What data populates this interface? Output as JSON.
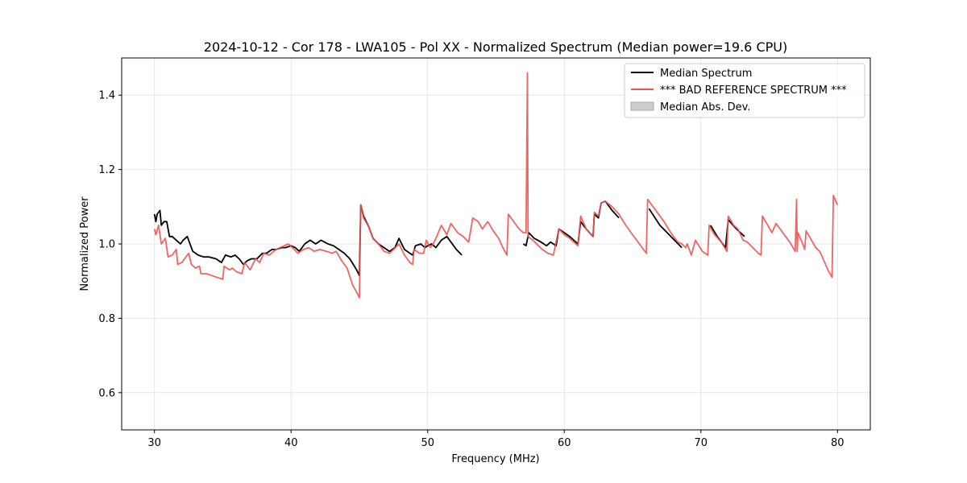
{
  "chart_data": {
    "type": "line",
    "title": "2024-10-12 - Cor 178 - LWA105 - Pol XX - Normalized Spectrum (Median power=19.6 CPU)",
    "xlabel": "Frequency (MHz)",
    "ylabel": "Normalized Power",
    "xlim": [
      27.6,
      82.4
    ],
    "ylim": [
      0.5,
      1.5
    ],
    "xticks": [
      30,
      40,
      50,
      60,
      70,
      80
    ],
    "yticks": [
      0.6,
      0.8,
      1.0,
      1.2,
      1.4
    ],
    "xtick_labels": [
      "30",
      "40",
      "50",
      "60",
      "70",
      "80"
    ],
    "ytick_labels": [
      "0.6",
      "0.8",
      "1.0",
      "1.2",
      "1.4"
    ],
    "grid": true,
    "legend_position": "top-right",
    "series": [
      {
        "name": "Median Spectrum",
        "color": "#000000",
        "segments": [
          [
            [
              30.0,
              1.08
            ],
            [
              30.1,
              1.06
            ],
            [
              30.2,
              1.08
            ],
            [
              30.4,
              1.09
            ],
            [
              30.5,
              1.05
            ],
            [
              30.7,
              1.06
            ],
            [
              30.9,
              1.06
            ],
            [
              31.0,
              1.04
            ],
            [
              31.1,
              1.02
            ],
            [
              31.3,
              1.02
            ],
            [
              31.6,
              1.01
            ],
            [
              31.9,
              1.0
            ],
            [
              32.1,
              1.01
            ],
            [
              32.4,
              1.02
            ],
            [
              32.6,
              1.0
            ],
            [
              32.8,
              0.98
            ],
            [
              33.2,
              0.97
            ],
            [
              33.6,
              0.965
            ],
            [
              34.0,
              0.965
            ],
            [
              34.5,
              0.96
            ],
            [
              34.9,
              0.95
            ],
            [
              35.2,
              0.97
            ],
            [
              35.6,
              0.965
            ],
            [
              35.9,
              0.97
            ],
            [
              36.2,
              0.96
            ],
            [
              36.5,
              0.945
            ],
            [
              36.8,
              0.955
            ],
            [
              37.1,
              0.96
            ],
            [
              37.5,
              0.96
            ],
            [
              37.9,
              0.975
            ],
            [
              38.2,
              0.975
            ],
            [
              38.6,
              0.985
            ],
            [
              38.9,
              0.985
            ],
            [
              39.3,
              0.99
            ],
            [
              39.6,
              0.99
            ],
            [
              40.0,
              0.995
            ],
            [
              40.3,
              0.99
            ],
            [
              40.6,
              0.98
            ],
            [
              41.0,
              1.0
            ],
            [
              41.4,
              1.01
            ],
            [
              41.8,
              1.0
            ],
            [
              42.2,
              1.01
            ],
            [
              42.7,
              1.0
            ],
            [
              43.1,
              0.995
            ],
            [
              43.5,
              0.985
            ],
            [
              43.9,
              0.975
            ],
            [
              44.3,
              0.96
            ],
            [
              44.8,
              0.93
            ],
            [
              45.0,
              0.915
            ],
            [
              45.1,
              1.105
            ],
            [
              45.3,
              1.075
            ],
            [
              45.7,
              1.045
            ],
            [
              46.0,
              1.015
            ],
            [
              46.4,
              1.0
            ],
            [
              46.8,
              0.99
            ],
            [
              47.2,
              0.98
            ],
            [
              47.6,
              0.99
            ],
            [
              47.9,
              1.015
            ],
            [
              48.3,
              0.985
            ],
            [
              48.7,
              0.975
            ],
            [
              48.9,
              0.97
            ],
            [
              49.1,
              0.995
            ],
            [
              49.5,
              1.0
            ],
            [
              49.8,
              0.99
            ],
            [
              50.0,
              0.995
            ],
            [
              50.3,
              1.0
            ],
            [
              50.6,
              0.99
            ],
            [
              51.0,
              1.01
            ],
            [
              51.4,
              1.02
            ],
            [
              51.8,
              1.0
            ],
            [
              52.1,
              0.985
            ],
            [
              52.5,
              0.97
            ]
          ],
          [
            [
              57.0,
              1.0
            ],
            [
              57.2,
              0.995
            ],
            [
              57.4,
              1.03
            ],
            [
              57.8,
              1.015
            ],
            [
              58.3,
              1.005
            ],
            [
              58.7,
              0.995
            ],
            [
              59.0,
              1.005
            ],
            [
              59.4,
              0.995
            ],
            [
              59.6,
              1.04
            ],
            [
              60.0,
              1.03
            ],
            [
              60.4,
              1.02
            ],
            [
              60.7,
              1.01
            ],
            [
              61.0,
              1.0
            ],
            [
              61.2,
              1.06
            ],
            [
              61.6,
              1.04
            ],
            [
              62.1,
              1.02
            ],
            [
              62.2,
              1.08
            ],
            [
              62.5,
              1.07
            ],
            [
              62.7,
              1.11
            ],
            [
              63.0,
              1.115
            ],
            [
              63.5,
              1.09
            ],
            [
              64.0,
              1.07
            ]
          ],
          [
            [
              66.2,
              1.095
            ],
            [
              67.0,
              1.05
            ],
            [
              67.8,
              1.02
            ],
            [
              68.6,
              0.99
            ]
          ],
          [
            [
              70.7,
              1.05
            ],
            [
              71.2,
              1.02
            ],
            [
              71.8,
              0.99
            ],
            [
              72.0,
              1.065
            ],
            [
              72.6,
              1.04
            ],
            [
              73.2,
              1.02
            ]
          ]
        ]
      },
      {
        "name": "*** BAD REFERENCE SPECTRUM ***",
        "color": "#ef5350",
        "segments": [
          [
            [
              30.0,
              1.04
            ],
            [
              30.1,
              1.025
            ],
            [
              30.3,
              1.05
            ],
            [
              30.5,
              1.0
            ],
            [
              30.8,
              1.015
            ],
            [
              31.0,
              0.965
            ],
            [
              31.3,
              0.97
            ],
            [
              31.6,
              0.985
            ],
            [
              31.7,
              0.945
            ],
            [
              32.0,
              0.95
            ],
            [
              32.5,
              0.975
            ],
            [
              32.7,
              0.945
            ],
            [
              33.0,
              0.935
            ],
            [
              33.3,
              0.94
            ],
            [
              33.4,
              0.92
            ],
            [
              33.8,
              0.92
            ],
            [
              34.2,
              0.915
            ],
            [
              34.6,
              0.91
            ],
            [
              35.0,
              0.905
            ],
            [
              35.1,
              0.94
            ],
            [
              35.5,
              0.93
            ],
            [
              35.7,
              0.935
            ],
            [
              36.0,
              0.925
            ],
            [
              36.4,
              0.92
            ],
            [
              36.6,
              0.95
            ],
            [
              37.0,
              0.93
            ],
            [
              37.4,
              0.96
            ],
            [
              37.7,
              0.95
            ],
            [
              38.0,
              0.975
            ],
            [
              38.4,
              0.97
            ],
            [
              38.9,
              0.985
            ],
            [
              39.2,
              0.99
            ],
            [
              39.5,
              0.995
            ],
            [
              39.8,
              1.0
            ],
            [
              40.1,
              0.99
            ],
            [
              40.5,
              0.975
            ],
            [
              40.9,
              0.985
            ],
            [
              41.3,
              0.99
            ],
            [
              41.7,
              0.98
            ],
            [
              42.1,
              0.985
            ],
            [
              42.6,
              0.98
            ],
            [
              43.0,
              0.975
            ],
            [
              43.3,
              0.98
            ],
            [
              43.7,
              0.955
            ],
            [
              44.1,
              0.935
            ],
            [
              44.5,
              0.89
            ],
            [
              44.8,
              0.87
            ],
            [
              45.0,
              0.855
            ],
            [
              45.1,
              1.105
            ],
            [
              45.3,
              1.07
            ],
            [
              45.7,
              1.045
            ],
            [
              46.0,
              1.015
            ],
            [
              46.4,
              1.0
            ],
            [
              46.8,
              0.98
            ],
            [
              47.2,
              0.975
            ],
            [
              47.5,
              0.985
            ],
            [
              47.9,
              1.0
            ],
            [
              48.3,
              0.97
            ],
            [
              48.7,
              0.95
            ],
            [
              48.9,
              0.945
            ],
            [
              49.0,
              0.985
            ],
            [
              49.4,
              0.975
            ],
            [
              49.7,
              0.975
            ],
            [
              49.9,
              1.01
            ],
            [
              50.2,
              0.99
            ],
            [
              50.4,
              1.0
            ],
            [
              50.6,
              1.015
            ],
            [
              51.0,
              1.05
            ],
            [
              51.4,
              1.025
            ],
            [
              51.7,
              1.055
            ],
            [
              52.2,
              1.03
            ],
            [
              52.6,
              1.02
            ],
            [
              53.0,
              1.005
            ],
            [
              53.3,
              1.07
            ],
            [
              53.7,
              1.06
            ],
            [
              54.0,
              1.04
            ],
            [
              54.4,
              1.06
            ],
            [
              54.8,
              1.035
            ],
            [
              55.2,
              1.015
            ],
            [
              55.5,
              0.99
            ],
            [
              55.8,
              0.97
            ],
            [
              55.9,
              1.08
            ],
            [
              56.3,
              1.06
            ],
            [
              56.7,
              1.04
            ],
            [
              57.0,
              1.03
            ],
            [
              57.2,
              1.03
            ],
            [
              57.3,
              1.46
            ],
            [
              57.35,
              1.02
            ],
            [
              57.7,
              1.01
            ],
            [
              58.1,
              0.995
            ],
            [
              58.4,
              0.985
            ],
            [
              58.8,
              0.975
            ],
            [
              59.2,
              0.97
            ],
            [
              59.6,
              1.04
            ],
            [
              60.0,
              1.025
            ],
            [
              60.4,
              1.015
            ],
            [
              60.7,
              1.005
            ],
            [
              61.0,
              0.995
            ],
            [
              61.2,
              1.075
            ],
            [
              61.6,
              1.04
            ],
            [
              62.1,
              1.02
            ],
            [
              62.2,
              1.085
            ],
            [
              62.5,
              1.075
            ],
            [
              62.7,
              1.11
            ],
            [
              63.0,
              1.115
            ],
            [
              63.5,
              1.1
            ],
            [
              64.0,
              1.08
            ],
            [
              64.5,
              1.05
            ],
            [
              65.0,
              1.025
            ],
            [
              65.5,
              1.0
            ],
            [
              66.0,
              0.975
            ],
            [
              66.1,
              1.12
            ],
            [
              66.7,
              1.09
            ],
            [
              67.3,
              1.06
            ],
            [
              67.8,
              1.03
            ],
            [
              68.3,
              1.005
            ],
            [
              68.6,
              1.0
            ],
            [
              68.9,
              0.99
            ],
            [
              69.0,
              1.0
            ],
            [
              69.3,
              0.97
            ],
            [
              69.6,
              1.01
            ],
            [
              70.1,
              0.98
            ],
            [
              70.5,
              0.97
            ],
            [
              70.6,
              1.05
            ],
            [
              71.0,
              1.025
            ],
            [
              71.5,
              1.005
            ],
            [
              71.9,
              0.98
            ],
            [
              72.0,
              1.075
            ],
            [
              72.4,
              1.05
            ],
            [
              72.7,
              1.04
            ],
            [
              73.1,
              1.01
            ],
            [
              73.4,
              1.005
            ],
            [
              73.8,
              0.99
            ],
            [
              74.2,
              0.975
            ],
            [
              74.4,
              0.97
            ],
            [
              74.5,
              1.075
            ],
            [
              74.9,
              1.05
            ],
            [
              75.2,
              1.03
            ],
            [
              75.5,
              1.055
            ],
            [
              76.0,
              1.03
            ],
            [
              76.5,
              1.005
            ],
            [
              76.9,
              0.98
            ],
            [
              77.0,
              1.12
            ],
            [
              77.05,
              0.98
            ],
            [
              77.1,
              1.03
            ],
            [
              77.4,
              1.005
            ],
            [
              77.6,
              0.985
            ],
            [
              77.7,
              1.035
            ],
            [
              78.1,
              1.01
            ],
            [
              78.4,
              0.99
            ],
            [
              78.7,
              0.98
            ],
            [
              79.0,
              0.955
            ],
            [
              79.3,
              0.93
            ],
            [
              79.6,
              0.91
            ],
            [
              79.7,
              1.13
            ],
            [
              80.0,
              1.105
            ]
          ]
        ]
      }
    ],
    "legend": [
      {
        "label": "Median Spectrum",
        "type": "line",
        "color": "#000000"
      },
      {
        "label": "*** BAD REFERENCE SPECTRUM ***",
        "type": "line",
        "color": "#ef5350"
      },
      {
        "label": "Median Abs. Dev.",
        "type": "patch",
        "color": "#cccccc"
      }
    ]
  }
}
